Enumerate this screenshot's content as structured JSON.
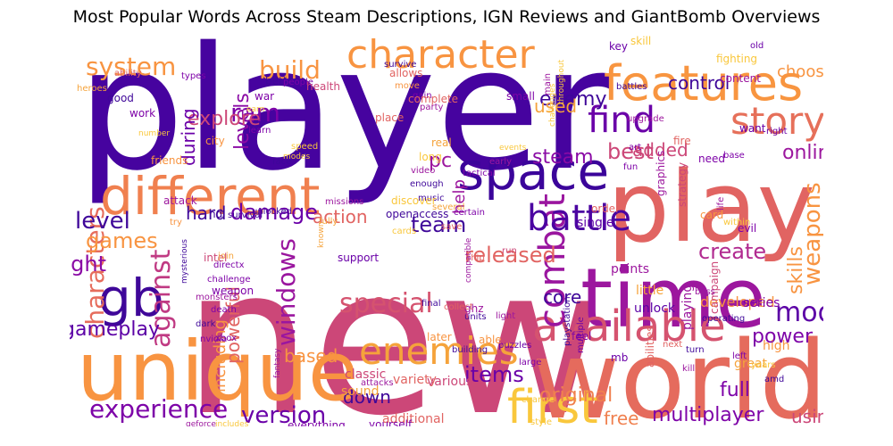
{
  "chart_data": {
    "type": "wordcloud",
    "title": "Most Popular Words Across Steam Descriptions, IGN Reviews and GiantBomb Overviews",
    "palette": [
      "#3f0799",
      "#5a06a5",
      "#7a0aa7",
      "#9a169f",
      "#b42a90",
      "#cb4679",
      "#d9586a",
      "#e8735a",
      "#f09150",
      "#f7b13f",
      "#f9d23c"
    ],
    "words": [
      {
        "text": "player",
        "weight": 100,
        "color": "#46039f"
      },
      {
        "text": "new",
        "weight": 98,
        "color": "#cc4778"
      },
      {
        "text": "world",
        "weight": 68,
        "color": "#e56b5d"
      },
      {
        "text": "play",
        "weight": 62,
        "color": "#e16462"
      },
      {
        "text": "unique",
        "weight": 50,
        "color": "#f89441"
      },
      {
        "text": "time",
        "weight": 50,
        "color": "#9c179e"
      },
      {
        "text": "different",
        "weight": 34,
        "color": "#f0804f"
      },
      {
        "text": "space",
        "weight": 32,
        "color": "#3b049a"
      },
      {
        "text": "features",
        "weight": 30,
        "color": "#f89540"
      },
      {
        "text": "gb",
        "weight": 30,
        "color": "#3f0799"
      },
      {
        "text": "first",
        "weight": 30,
        "color": "#f9c73c"
      },
      {
        "text": "character",
        "weight": 25,
        "color": "#f89441"
      },
      {
        "text": "available",
        "weight": 26,
        "color": "#d5536f"
      },
      {
        "text": "enemies",
        "weight": 25,
        "color": "#f5a33b"
      },
      {
        "text": "story",
        "weight": 24,
        "color": "#e6705a"
      },
      {
        "text": "find",
        "weight": 24,
        "color": "#6a00a8"
      },
      {
        "text": "combat",
        "weight": 22,
        "color": "#9a169f"
      },
      {
        "text": "battle",
        "weight": 21,
        "color": "#4b03a1"
      },
      {
        "text": "against",
        "weight": 20,
        "color": "#c03a83"
      },
      {
        "text": "experience",
        "weight": 18,
        "color": "#7d03a8"
      },
      {
        "text": "system",
        "weight": 18,
        "color": "#f89441"
      },
      {
        "text": "special",
        "weight": 17,
        "color": "#d5536f"
      },
      {
        "text": "build",
        "weight": 17,
        "color": "#f89441"
      },
      {
        "text": "characters",
        "weight": 16,
        "color": "#e66c5c"
      },
      {
        "text": "mode",
        "weight": 16,
        "color": "#5c01a6"
      },
      {
        "text": "level",
        "weight": 16,
        "color": "#3f0799"
      },
      {
        "text": "windows",
        "weight": 16,
        "color": "#9a169f"
      },
      {
        "text": "weapons",
        "weight": 15,
        "color": "#f89441"
      },
      {
        "text": "version",
        "weight": 15,
        "color": "#6a00a8"
      },
      {
        "text": "team",
        "weight": 15,
        "color": "#3f0799"
      },
      {
        "text": "create",
        "weight": 14,
        "color": "#b12a90"
      },
      {
        "text": "multiplayer",
        "weight": 14,
        "color": "#7e03a8"
      },
      {
        "text": "fight",
        "weight": 14,
        "color": "#8a0aa5"
      },
      {
        "text": "games",
        "weight": 14,
        "color": "#f89441"
      },
      {
        "text": "damage",
        "weight": 14,
        "color": "#6a00a8"
      },
      {
        "text": "gameplay",
        "weight": 13,
        "color": "#5c01a6"
      },
      {
        "text": "enemy",
        "weight": 13,
        "color": "#3f0799"
      },
      {
        "text": "released",
        "weight": 13,
        "color": "#e16462"
      },
      {
        "text": "skills",
        "weight": 13,
        "color": "#f89441"
      },
      {
        "text": "items",
        "weight": 13,
        "color": "#6a00a8"
      },
      {
        "text": "online",
        "weight": 12,
        "color": "#9c179e"
      },
      {
        "text": "action",
        "weight": 12,
        "color": "#e16462"
      },
      {
        "text": "full",
        "weight": 12,
        "color": "#7e03a8"
      },
      {
        "text": "original",
        "weight": 12,
        "color": "#f0804f"
      },
      {
        "text": "control",
        "weight": 12,
        "color": "#3f0799"
      },
      {
        "text": "ram",
        "weight": 12,
        "color": "#7e03a8"
      },
      {
        "text": "steam",
        "weight": 12,
        "color": "#8a0aa5"
      },
      {
        "text": "best",
        "weight": 12,
        "color": "#cc4778"
      },
      {
        "text": "levels",
        "weight": 12,
        "color": "#8a0aa5"
      },
      {
        "text": "explore",
        "weight": 12,
        "color": "#cc4778"
      },
      {
        "text": "power",
        "weight": 12,
        "color": "#7e03a8"
      },
      {
        "text": "adventure",
        "weight": 11,
        "color": "#f5a33b"
      },
      {
        "text": "choose",
        "weight": 11,
        "color": "#f89441"
      },
      {
        "text": "based",
        "weight": 11,
        "color": "#f89441"
      },
      {
        "text": "down",
        "weight": 11,
        "color": "#3f0799"
      },
      {
        "text": "core",
        "weight": 11,
        "color": "#3f0799"
      },
      {
        "text": "including",
        "weight": 10,
        "color": "#f89441"
      },
      {
        "text": "powerful",
        "weight": 10,
        "color": "#e16462"
      },
      {
        "text": "help",
        "weight": 10,
        "color": "#9c179e"
      },
      {
        "text": "using",
        "weight": 10,
        "color": "#cc4778"
      },
      {
        "text": "during",
        "weight": 10,
        "color": "#6a00a8"
      },
      {
        "text": "hard",
        "weight": 10,
        "color": "#3f0799"
      },
      {
        "text": "added",
        "weight": 10,
        "color": "#cc4778"
      },
      {
        "text": "pc",
        "weight": 10,
        "color": "#9c179e"
      },
      {
        "text": "free",
        "weight": 10,
        "color": "#f0804f"
      },
      {
        "text": "used",
        "weight": 10,
        "color": "#f5a33b"
      },
      {
        "text": "developed",
        "weight": 8,
        "color": "#f89441"
      },
      {
        "text": "unlock",
        "weight": 8,
        "color": "#5c01a6"
      },
      {
        "text": "playing",
        "weight": 8,
        "color": "#9c179e"
      },
      {
        "text": "points",
        "weight": 8,
        "color": "#9c179e"
      },
      {
        "text": "variety",
        "weight": 8,
        "color": "#e16462"
      },
      {
        "text": "various",
        "weight": 8,
        "color": "#cc4778"
      },
      {
        "text": "sound",
        "weight": 8,
        "color": "#f5a33b"
      },
      {
        "text": "classic",
        "weight": 8,
        "color": "#cc4778"
      },
      {
        "text": "additional",
        "weight": 8,
        "color": "#e16462"
      },
      {
        "text": "everything",
        "weight": 7,
        "color": "#7e03a8"
      },
      {
        "text": "yourself",
        "weight": 7,
        "color": "#7e03a8"
      },
      {
        "text": "single",
        "weight": 8,
        "color": "#5c01a6"
      },
      {
        "text": "little",
        "weight": 8,
        "color": "#f5a33b"
      },
      {
        "text": "great",
        "weight": 8,
        "color": "#f5a33b"
      },
      {
        "text": "series",
        "weight": 8,
        "color": "#7e03a8"
      },
      {
        "text": "high",
        "weight": 8,
        "color": "#f89441"
      },
      {
        "text": "campaign",
        "weight": 7,
        "color": "#cc4778"
      },
      {
        "text": "abilities",
        "weight": 7,
        "color": "#e16462"
      },
      {
        "text": "graphics",
        "weight": 7,
        "color": "#9c179e"
      },
      {
        "text": "strategy",
        "weight": 7,
        "color": "#cc4778"
      },
      {
        "text": "card",
        "weight": 7,
        "color": "#f89441"
      },
      {
        "text": "want",
        "weight": 7,
        "color": "#6a00a8"
      },
      {
        "text": "need",
        "weight": 7,
        "color": "#7e03a8"
      },
      {
        "text": "fire",
        "weight": 7,
        "color": "#e16462"
      },
      {
        "text": "skill",
        "weight": 7,
        "color": "#f9c73c"
      },
      {
        "text": "key",
        "weight": 7,
        "color": "#6a00a8"
      },
      {
        "text": "old",
        "weight": 6,
        "color": "#6a00a8"
      },
      {
        "text": "fighting",
        "weight": 6,
        "color": "#f9c73c"
      },
      {
        "text": "content",
        "weight": 6,
        "color": "#9c179e"
      },
      {
        "text": "battles",
        "weight": 6,
        "color": "#3f0799"
      },
      {
        "text": "upgrade",
        "weight": 6,
        "color": "#9c179e"
      },
      {
        "text": "right",
        "weight": 6,
        "color": "#6a00a8"
      },
      {
        "text": "art",
        "weight": 6,
        "color": "#7e03a8"
      },
      {
        "text": "fun",
        "weight": 6,
        "color": "#7e03a8"
      },
      {
        "text": "base",
        "weight": 6,
        "color": "#7e03a8"
      },
      {
        "text": "within",
        "weight": 6,
        "color": "#f9c73c"
      },
      {
        "text": "evil",
        "weight": 6,
        "color": "#7e03a8"
      },
      {
        "text": "life",
        "weight": 6,
        "color": "#9c179e"
      },
      {
        "text": "boss",
        "weight": 6,
        "color": "#9c179e"
      },
      {
        "text": "operating",
        "weight": 6,
        "color": "#3f0799"
      },
      {
        "text": "next",
        "weight": 6,
        "color": "#e16462"
      },
      {
        "text": "turn",
        "weight": 6,
        "color": "#3f0799"
      },
      {
        "text": "left",
        "weight": 6,
        "color": "#7e03a8"
      },
      {
        "text": "years",
        "weight": 6,
        "color": "#f9c73c"
      },
      {
        "text": "kill",
        "weight": 6,
        "color": "#9c179e"
      },
      {
        "text": "amd",
        "weight": 6,
        "color": "#3f0799"
      },
      {
        "text": "mb",
        "weight": 6,
        "color": "#6a00a8"
      },
      {
        "text": "change",
        "weight": 6,
        "color": "#f9c73c"
      },
      {
        "text": "style",
        "weight": 6,
        "color": "#f9c73c"
      },
      {
        "text": "large",
        "weight": 6,
        "color": "#7e03a8"
      },
      {
        "text": "puzzles",
        "weight": 6,
        "color": "#6a00a8"
      },
      {
        "text": "able",
        "weight": 6,
        "color": "#f89441"
      },
      {
        "text": "later",
        "weight": 6,
        "color": "#f89441"
      },
      {
        "text": "feel",
        "weight": 6,
        "color": "#7e03a8"
      },
      {
        "text": "order",
        "weight": 6,
        "color": "#e16462"
      },
      {
        "text": "playstation",
        "weight": 5,
        "color": "#3f0799"
      },
      {
        "text": "light",
        "weight": 5,
        "color": "#9c179e"
      },
      {
        "text": "multiple",
        "weight": 5,
        "color": "#6a00a8"
      },
      {
        "text": "ghz",
        "weight": 6,
        "color": "#9c179e"
      },
      {
        "text": "run",
        "weight": 6,
        "color": "#cc4778"
      },
      {
        "text": "ship",
        "weight": 6,
        "color": "#e16462"
      },
      {
        "text": "save",
        "weight": 6,
        "color": "#e16462"
      },
      {
        "text": "compatible",
        "weight": 5,
        "color": "#9c179e"
      },
      {
        "text": "units",
        "weight": 5,
        "color": "#3f0799"
      },
      {
        "text": "final",
        "weight": 5,
        "color": "#3f0799"
      },
      {
        "text": "collect",
        "weight": 5,
        "color": "#e16462"
      },
      {
        "text": "building",
        "weight": 6,
        "color": "#3f0799"
      },
      {
        "text": "attacks",
        "weight": 6,
        "color": "#9c179e"
      },
      {
        "text": "fantasy",
        "weight": 5,
        "color": "#9c179e"
      },
      {
        "text": "includes",
        "weight": 5,
        "color": "#f9c73c"
      },
      {
        "text": "geforce",
        "weight": 5,
        "color": "#9c179e"
      },
      {
        "text": "nvidia",
        "weight": 6,
        "color": "#7e03a8"
      },
      {
        "text": "xbox",
        "weight": 5,
        "color": "#7e03a8"
      },
      {
        "text": "dark",
        "weight": 6,
        "color": "#3f0799"
      },
      {
        "text": "death",
        "weight": 6,
        "color": "#7e03a8"
      },
      {
        "text": "monsters",
        "weight": 6,
        "color": "#9c179e"
      },
      {
        "text": "intel",
        "weight": 7,
        "color": "#cc4778"
      },
      {
        "text": "weapon",
        "weight": 7,
        "color": "#7e03a8"
      },
      {
        "text": "challenge",
        "weight": 6,
        "color": "#7e03a8"
      },
      {
        "text": "join",
        "weight": 6,
        "color": "#f5a33b"
      },
      {
        "text": "directx",
        "weight": 6,
        "color": "#7e03a8"
      },
      {
        "text": "mysterious",
        "weight": 5,
        "color": "#3f0799"
      },
      {
        "text": "try",
        "weight": 6,
        "color": "#f89441"
      },
      {
        "text": "attack",
        "weight": 7,
        "color": "#9c179e"
      },
      {
        "text": "hd",
        "weight": 7,
        "color": "#3f0799"
      },
      {
        "text": "survival",
        "weight": 6,
        "color": "#3f0799"
      },
      {
        "text": "fully",
        "weight": 6,
        "color": "#f5a33b"
      },
      {
        "text": "known",
        "weight": 5,
        "color": "#f5a33b"
      },
      {
        "text": "support",
        "weight": 7,
        "color": "#6a00a8"
      },
      {
        "text": "cards",
        "weight": 6,
        "color": "#f9c73c"
      },
      {
        "text": "openaccess",
        "weight": 7,
        "color": "#3f0799"
      },
      {
        "text": "missions",
        "weight": 6,
        "color": "#9c179e"
      },
      {
        "text": "music",
        "weight": 6,
        "color": "#3f0799"
      },
      {
        "text": "several",
        "weight": 6,
        "color": "#f5a33b"
      },
      {
        "text": "enough",
        "weight": 6,
        "color": "#3f0799"
      },
      {
        "text": "video",
        "weight": 6,
        "color": "#9c179e"
      },
      {
        "text": "certain",
        "weight": 6,
        "color": "#7e03a8"
      },
      {
        "text": "discover",
        "weight": 7,
        "color": "#f9c73c"
      },
      {
        "text": "tactical",
        "weight": 6,
        "color": "#7e03a8"
      },
      {
        "text": "early",
        "weight": 6,
        "color": "#9c179e"
      },
      {
        "text": "events",
        "weight": 5,
        "color": "#f9c73c"
      },
      {
        "text": "long",
        "weight": 7,
        "color": "#f9c73c"
      },
      {
        "text": "real",
        "weight": 8,
        "color": "#f5a33b"
      },
      {
        "text": "place",
        "weight": 8,
        "color": "#e16462"
      },
      {
        "text": "unlocked",
        "weight": 6,
        "color": "#3f0799"
      },
      {
        "text": "modes",
        "weight": 5,
        "color": "#f9c73c"
      },
      {
        "text": "face",
        "weight": 6,
        "color": "#3f0799"
      },
      {
        "text": "speed",
        "weight": 6,
        "color": "#f9c73c"
      },
      {
        "text": "friends",
        "weight": 7,
        "color": "#f89441"
      },
      {
        "text": "city",
        "weight": 7,
        "color": "#f89441"
      },
      {
        "text": "learn",
        "weight": 6,
        "color": "#7e03a8"
      },
      {
        "text": "work",
        "weight": 8,
        "color": "#7e03a8"
      },
      {
        "text": "number",
        "weight": 5,
        "color": "#f9c73c"
      },
      {
        "text": "good",
        "weight": 8,
        "color": "#3f0799"
      },
      {
        "text": "heroes",
        "weight": 6,
        "color": "#f5a33b"
      },
      {
        "text": "ability",
        "weight": 6,
        "color": "#e16462"
      },
      {
        "text": "types",
        "weight": 6,
        "color": "#7e03a8"
      },
      {
        "text": "earn",
        "weight": 5,
        "color": "#f9c73c"
      },
      {
        "text": "war",
        "weight": 8,
        "color": "#7e03a8"
      },
      {
        "text": "better",
        "weight": 8,
        "color": "#3f0799"
      },
      {
        "text": "people",
        "weight": 6,
        "color": "#7e03a8"
      },
      {
        "text": "health",
        "weight": 7,
        "color": "#cc4778"
      },
      {
        "text": "allows",
        "weight": 8,
        "color": "#e16462"
      },
      {
        "text": "survive",
        "weight": 6,
        "color": "#3f0799"
      },
      {
        "text": "move",
        "weight": 6,
        "color": "#f89441"
      },
      {
        "text": "gain",
        "weight": 6,
        "color": "#7e03a8"
      },
      {
        "text": "complete",
        "weight": 7,
        "color": "#e16462"
      },
      {
        "text": "party",
        "weight": 6,
        "color": "#9c179e"
      },
      {
        "text": "small",
        "weight": 7,
        "color": "#7e03a8"
      },
      {
        "text": "main",
        "weight": 6,
        "color": "#9c179e"
      },
      {
        "text": "throughout",
        "weight": 5,
        "color": "#f9c73c"
      },
      {
        "text": "challenges",
        "weight": 5,
        "color": "#f9c73c"
      }
    ]
  }
}
